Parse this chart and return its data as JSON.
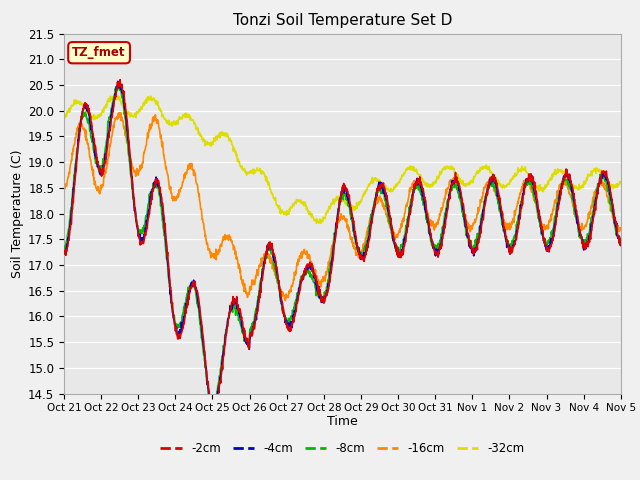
{
  "title": "Tonzi Soil Temperature Set D",
  "xlabel": "Time",
  "ylabel": "Soil Temperature (C)",
  "ylim": [
    14.5,
    21.5
  ],
  "figsize": [
    6.4,
    4.8
  ],
  "dpi": 100,
  "background_color": "#f0f0f0",
  "plot_bg_color": "#e8e8e8",
  "series_colors": {
    "-2cm": "#dd0000",
    "-4cm": "#0000cc",
    "-8cm": "#00bb00",
    "-16cm": "#ff8800",
    "-32cm": "#dddd00"
  },
  "legend_label": "TZ_fmet",
  "legend_box_facecolor": "#ffffcc",
  "legend_box_edgecolor": "#cc0000",
  "x_tick_labels": [
    "Oct 21",
    "Oct 22",
    "Oct 23",
    "Oct 24",
    "Oct 25",
    "Oct 26",
    "Oct 27",
    "Oct 28",
    "Oct 29",
    "Oct 30",
    "Oct 31",
    "Nov 1",
    "Nov 2",
    "Nov 3",
    "Nov 4",
    "Nov 5"
  ],
  "y_ticks": [
    14.5,
    15.0,
    15.5,
    16.0,
    16.5,
    17.0,
    17.5,
    18.0,
    18.5,
    19.0,
    19.5,
    20.0,
    20.5,
    21.0,
    21.5
  ],
  "linewidth": 1.2
}
